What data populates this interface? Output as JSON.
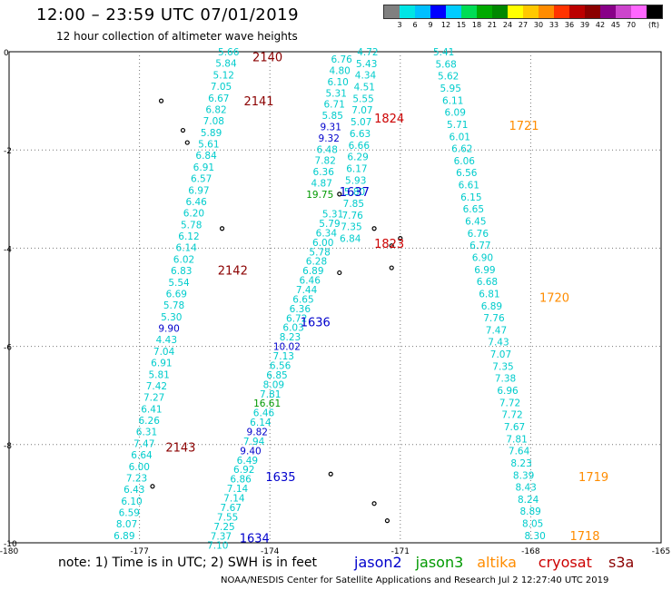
{
  "header": {
    "title": "12:00 – 23:59 UTC 07/01/2019",
    "subtitle": "12 hour collection of altimeter wave heights"
  },
  "color_scale": {
    "colors": [
      "#808080",
      "#00e5e5",
      "#00bfff",
      "#0000ff",
      "#00ccff",
      "#00dd55",
      "#00aa00",
      "#008800",
      "#ffff00",
      "#ffc800",
      "#ff8c00",
      "#ff3300",
      "#bb0000",
      "#8b0000",
      "#880088",
      "#cc44cc",
      "#ff66ff",
      "#000000"
    ],
    "labels": [
      "3",
      "6",
      "9",
      "12",
      "15",
      "18",
      "21",
      "24",
      "27",
      "30",
      "33",
      "36",
      "39",
      "42",
      "45",
      "70"
    ],
    "unit": "(ft)"
  },
  "axes": {
    "x_ticks": [
      "-180",
      "-177",
      "-174",
      "-171",
      "-168",
      "-165"
    ],
    "y_ticks": [
      "0",
      "-2",
      "-4",
      "-6",
      "-8",
      "-10"
    ]
  },
  "pass_colors": {
    "jason2": "#0000cc",
    "jason3": "#009900",
    "altika": "#ff8c00",
    "cryosat": "#cc0000",
    "s3a": "#8b0000",
    "swh": "#00cccc"
  },
  "pass_labels": [
    {
      "text": "2140",
      "lon": -174.4,
      "lat": -0.1,
      "sat": "s3a"
    },
    {
      "text": "2141",
      "lon": -174.6,
      "lat": -1.0,
      "sat": "s3a"
    },
    {
      "text": "2142",
      "lon": -175.2,
      "lat": -4.45,
      "sat": "s3a"
    },
    {
      "text": "2143",
      "lon": -176.4,
      "lat": -8.05,
      "sat": "s3a"
    },
    {
      "text": "1824",
      "lon": -171.6,
      "lat": -1.35,
      "sat": "cryosat"
    },
    {
      "text": "1823",
      "lon": -171.6,
      "lat": -3.9,
      "sat": "cryosat"
    },
    {
      "text": "1637",
      "lon": -172.4,
      "lat": -2.85,
      "sat": "jason2"
    },
    {
      "text": "1636",
      "lon": -173.3,
      "lat": -5.5,
      "sat": "jason2"
    },
    {
      "text": "1635",
      "lon": -174.1,
      "lat": -8.65,
      "sat": "jason2"
    },
    {
      "text": "1634",
      "lon": -174.7,
      "lat": -9.9,
      "sat": "jason2"
    },
    {
      "text": "1721",
      "lon": -168.5,
      "lat": -1.5,
      "sat": "altika"
    },
    {
      "text": "1720",
      "lon": -167.8,
      "lat": -5.0,
      "sat": "altika"
    },
    {
      "text": "1719",
      "lon": -166.9,
      "lat": -8.65,
      "sat": "altika"
    },
    {
      "text": "1718",
      "lon": -167.1,
      "lat": -9.85,
      "sat": "altika"
    }
  ],
  "swh_tracks": [
    {
      "name": "track-2140-2143",
      "lon0": -174.95,
      "lat0": 0.0,
      "lon1": -177.35,
      "lat1": -9.85,
      "values": [
        "5.66",
        "5.84",
        "5.12",
        "7.05",
        "6.67",
        "6.82",
        "7.08",
        "5.89",
        "5.61",
        "6.84",
        "6.91",
        "6.57",
        "6.97",
        "6.46",
        "6.20",
        "5.78",
        "6.12",
        "6.14",
        "6.02",
        "6.83",
        "5.54",
        "6.69",
        "5.78",
        "5.30",
        "9.90",
        "4.43",
        "7.04",
        "6.91",
        "5.81",
        "7.42",
        "7.27",
        "6.41",
        "6.26",
        "6.31",
        "7.47",
        "6.64",
        "6.00",
        "7.23",
        "6.43",
        "6.10",
        "6.59",
        "8.07",
        "6.89"
      ],
      "highlight": {
        "9.90": "#0000cc"
      }
    },
    {
      "name": "track-1634-1637",
      "lon0": -172.55,
      "lat0": -3.3,
      "lon1": -175.2,
      "lat1": -10.05,
      "values": [
        "5.31",
        "5.79",
        "6.34",
        "6.00",
        "5.78",
        "6.28",
        "6.89",
        "6.46",
        "7.44",
        "6.65",
        "6.36",
        "6.72",
        "6.03",
        "8.23",
        "10.02",
        "7.13",
        "6.56",
        "6.85",
        "8.09",
        "7.81",
        "16.61",
        "6.46",
        "6.14",
        "9.82",
        "7.94",
        "9.40",
        "6.49",
        "6.92",
        "6.86",
        "7.14",
        "7.14",
        "7.67",
        "7.55",
        "7.25",
        "7.37",
        "7.10"
      ],
      "highlight": {
        "10.02": "#0000cc",
        "16.61": "#009900",
        "9.82": "#0000cc",
        "9.40": "#0000cc"
      }
    },
    {
      "name": "track-1824-1823-a",
      "lon0": -172.35,
      "lat0": -0.15,
      "lon1": -172.85,
      "lat1": -2.9,
      "values": [
        "6.76",
        "4.80",
        "6.10",
        "5.31",
        "6.71",
        "5.85",
        "9.31",
        "9.32",
        "6.48",
        "7.82",
        "6.36",
        "4.87",
        "19.75"
      ],
      "highlight": {
        "9.31": "#0000cc",
        "9.32": "#0000cc",
        "19.75": "#009900"
      }
    },
    {
      "name": "track-1824-1823-b",
      "lon0": -171.75,
      "lat0": 0.0,
      "lon1": -172.15,
      "lat1": -3.8,
      "values": [
        "4.72",
        "5.43",
        "4.34",
        "4.51",
        "5.55",
        "7.07",
        "5.07",
        "6.63",
        "6.66",
        "6.29",
        "6.17",
        "5.93",
        "5.80",
        "7.85",
        "7.76",
        "7.35",
        "6.84"
      ],
      "highlight": {}
    },
    {
      "name": "track-1718-1721",
      "lon0": -170.0,
      "lat0": 0.0,
      "lon1": -167.9,
      "lat1": -9.85,
      "values": [
        "5.41",
        "5.68",
        "5.62",
        "5.95",
        "6.11",
        "6.09",
        "5.71",
        "6.01",
        "6.62",
        "6.06",
        "6.56",
        "6.61",
        "6.15",
        "6.65",
        "6.45",
        "6.76",
        "6.77",
        "6.90",
        "6.99",
        "6.68",
        "6.81",
        "6.89",
        "7.76",
        "7.47",
        "7.43",
        "7.07",
        "7.35",
        "7.38",
        "6.96",
        "7.72",
        "7.72",
        "7.67",
        "7.81",
        "7.64",
        "8.23",
        "8.39",
        "8.43",
        "8.24",
        "8.89",
        "8.05",
        "8.30"
      ],
      "highlight": {}
    }
  ],
  "islands": [
    {
      "lon": -176.5,
      "lat": -1.0
    },
    {
      "lon": -176.0,
      "lat": -1.6
    },
    {
      "lon": -175.9,
      "lat": -1.85
    },
    {
      "lon": -175.1,
      "lat": -3.6
    },
    {
      "lon": -172.4,
      "lat": -4.5
    },
    {
      "lon": -171.2,
      "lat": -4.4
    },
    {
      "lon": -172.4,
      "lat": -2.9
    },
    {
      "lon": -171.6,
      "lat": -3.6
    },
    {
      "lon": -171.0,
      "lat": -3.8
    },
    {
      "lon": -171.2,
      "lat": -3.95
    },
    {
      "lon": -172.6,
      "lat": -8.6
    },
    {
      "lon": -171.6,
      "lat": -9.2
    },
    {
      "lon": -171.3,
      "lat": -9.55
    },
    {
      "lon": -176.7,
      "lat": -8.85
    }
  ],
  "footnote": "note:  1) Time is in UTC;  2) SWH is in feet",
  "legend": [
    {
      "name": "jason2",
      "color": "#0000cc"
    },
    {
      "name": "jason3",
      "color": "#009900"
    },
    {
      "name": "altika",
      "color": "#ff8c00"
    },
    {
      "name": "cryosat",
      "color": "#cc0000"
    },
    {
      "name": "s3a",
      "color": "#8b0000"
    }
  ],
  "credit": "NOAA/NESDIS Center for Satellite Applications and Research    Jul  2 12:27:40 UTC 2019"
}
